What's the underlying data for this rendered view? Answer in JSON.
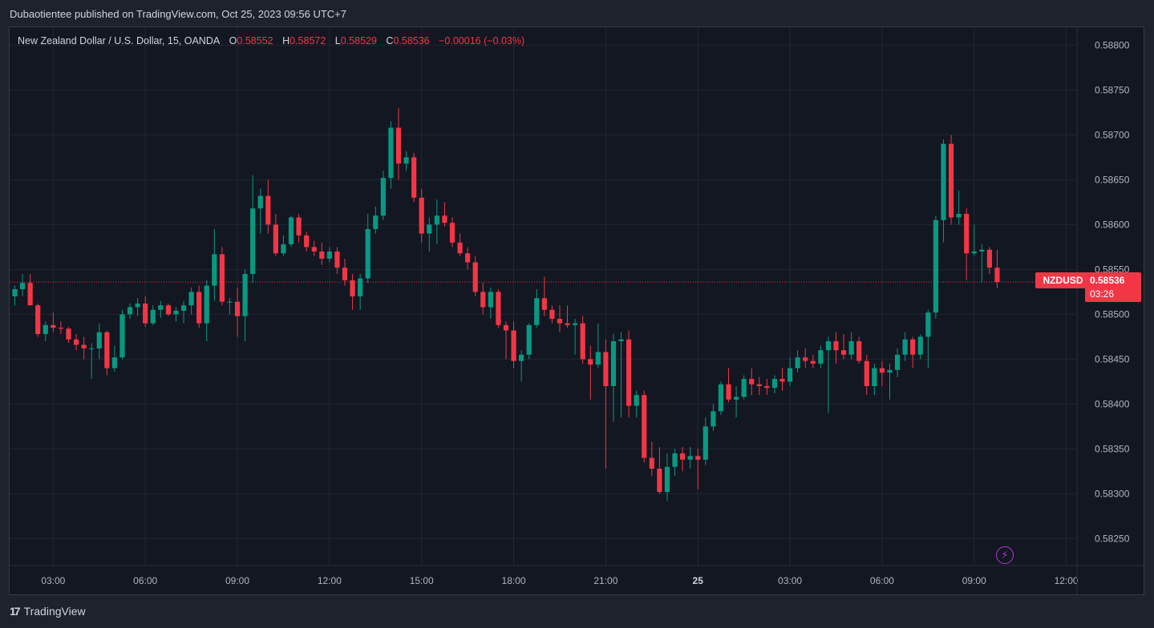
{
  "publisher_line": "Dubaotientee published on TradingView.com, Oct 25, 2023 09:56 UTC+7",
  "legend": {
    "symbol": "New Zealand Dollar / U.S. Dollar, 15, OANDA",
    "o_label": "O",
    "o_value": "0.58552",
    "h_label": "H",
    "h_value": "0.58572",
    "l_label": "L",
    "l_value": "0.58529",
    "c_label": "C",
    "c_value": "0.58536",
    "change": "−0.00016 (−0.03%)"
  },
  "price_tag": {
    "symbol": "NZDUSD",
    "price": "0.58536",
    "countdown": "03:26"
  },
  "footer": {
    "logo": "17",
    "brand": "TradingView"
  },
  "colors": {
    "up": "#089981",
    "down": "#f23645",
    "background": "#131722",
    "grid": "#232733",
    "text": "#b2b5be"
  },
  "icons": {
    "lightning": "lightning-icon"
  },
  "chart_data": {
    "type": "candlestick",
    "title": "New Zealand Dollar / U.S. Dollar, 15, OANDA",
    "timeframe": "15",
    "y_ticks": [
      "0.58800",
      "0.58750",
      "0.58700",
      "0.58650",
      "0.58600",
      "0.58550",
      "0.58500",
      "0.58450",
      "0.58400",
      "0.58350",
      "0.58300",
      "0.58250"
    ],
    "ylim": [
      0.5822,
      0.5882
    ],
    "x_ticks": [
      {
        "label": "03:00",
        "i": 5,
        "bold": false
      },
      {
        "label": "06:00",
        "i": 17,
        "bold": false
      },
      {
        "label": "09:00",
        "i": 29,
        "bold": false
      },
      {
        "label": "12:00",
        "i": 41,
        "bold": false
      },
      {
        "label": "15:00",
        "i": 53,
        "bold": false
      },
      {
        "label": "18:00",
        "i": 65,
        "bold": false
      },
      {
        "label": "21:00",
        "i": 77,
        "bold": false
      },
      {
        "label": "25",
        "i": 89,
        "bold": true
      },
      {
        "label": "03:00",
        "i": 101,
        "bold": false
      },
      {
        "label": "06:00",
        "i": 113,
        "bold": false
      },
      {
        "label": "09:00",
        "i": 125,
        "bold": false
      },
      {
        "label": "12:00",
        "i": 137,
        "bold": false
      }
    ],
    "last_price": 0.58536,
    "candles": [
      [
        0.5852,
        0.58532,
        0.5851,
        0.58528
      ],
      [
        0.58528,
        0.58545,
        0.5852,
        0.58535
      ],
      [
        0.58535,
        0.58545,
        0.5851,
        0.5851
      ],
      [
        0.5851,
        0.58512,
        0.58475,
        0.58478
      ],
      [
        0.58478,
        0.58492,
        0.5847,
        0.58488
      ],
      [
        0.58488,
        0.58502,
        0.5848,
        0.58485
      ],
      [
        0.58485,
        0.58492,
        0.58478,
        0.58484
      ],
      [
        0.58484,
        0.58486,
        0.58468,
        0.58472
      ],
      [
        0.58472,
        0.58478,
        0.5846,
        0.58466
      ],
      [
        0.58466,
        0.58475,
        0.5845,
        0.58462
      ],
      [
        0.58462,
        0.58468,
        0.58428,
        0.58462
      ],
      [
        0.58462,
        0.5849,
        0.5845,
        0.5848
      ],
      [
        0.5848,
        0.58482,
        0.58432,
        0.5844
      ],
      [
        0.5844,
        0.58465,
        0.58436,
        0.58452
      ],
      [
        0.58452,
        0.58505,
        0.5845,
        0.585
      ],
      [
        0.585,
        0.58512,
        0.58495,
        0.58508
      ],
      [
        0.58508,
        0.58518,
        0.58498,
        0.58512
      ],
      [
        0.58512,
        0.5852,
        0.58486,
        0.5849
      ],
      [
        0.5849,
        0.5851,
        0.58488,
        0.58505
      ],
      [
        0.58505,
        0.58515,
        0.58496,
        0.5851
      ],
      [
        0.5851,
        0.58512,
        0.58498,
        0.585
      ],
      [
        0.585,
        0.58508,
        0.58492,
        0.58504
      ],
      [
        0.58504,
        0.58515,
        0.5849,
        0.5851
      ],
      [
        0.5851,
        0.5853,
        0.585,
        0.58525
      ],
      [
        0.58525,
        0.58532,
        0.58485,
        0.5849
      ],
      [
        0.5849,
        0.58538,
        0.5847,
        0.58532
      ],
      [
        0.58532,
        0.58595,
        0.58515,
        0.58567
      ],
      [
        0.58567,
        0.58575,
        0.5851,
        0.58514
      ],
      [
        0.58514,
        0.58518,
        0.585,
        0.58514
      ],
      [
        0.58514,
        0.5853,
        0.58475,
        0.58498
      ],
      [
        0.58498,
        0.5855,
        0.5847,
        0.58545
      ],
      [
        0.58545,
        0.58655,
        0.58535,
        0.58618
      ],
      [
        0.58618,
        0.5864,
        0.5859,
        0.58632
      ],
      [
        0.58632,
        0.5865,
        0.5859,
        0.586
      ],
      [
        0.586,
        0.58612,
        0.58565,
        0.58568
      ],
      [
        0.58568,
        0.58588,
        0.58565,
        0.58578
      ],
      [
        0.58578,
        0.5861,
        0.58575,
        0.58608
      ],
      [
        0.58608,
        0.58612,
        0.5858,
        0.58588
      ],
      [
        0.58588,
        0.58592,
        0.5857,
        0.58575
      ],
      [
        0.58575,
        0.58582,
        0.58565,
        0.5857
      ],
      [
        0.5857,
        0.5858,
        0.58555,
        0.58562
      ],
      [
        0.58562,
        0.58575,
        0.58558,
        0.5857
      ],
      [
        0.5857,
        0.58575,
        0.58545,
        0.58552
      ],
      [
        0.58552,
        0.58562,
        0.58532,
        0.58538
      ],
      [
        0.58538,
        0.58545,
        0.58505,
        0.5852
      ],
      [
        0.5852,
        0.58545,
        0.58505,
        0.5854
      ],
      [
        0.5854,
        0.58612,
        0.58535,
        0.58595
      ],
      [
        0.58595,
        0.5862,
        0.5859,
        0.5861
      ],
      [
        0.5861,
        0.5866,
        0.58605,
        0.58652
      ],
      [
        0.58652,
        0.58715,
        0.5864,
        0.58708
      ],
      [
        0.58708,
        0.5873,
        0.5865,
        0.58668
      ],
      [
        0.58668,
        0.58682,
        0.5866,
        0.58675
      ],
      [
        0.58675,
        0.5868,
        0.58625,
        0.5863
      ],
      [
        0.5863,
        0.5864,
        0.5858,
        0.5859
      ],
      [
        0.5859,
        0.58608,
        0.5857,
        0.586
      ],
      [
        0.586,
        0.58628,
        0.58578,
        0.5861
      ],
      [
        0.5861,
        0.58625,
        0.58598,
        0.58602
      ],
      [
        0.58602,
        0.58608,
        0.58575,
        0.5858
      ],
      [
        0.5858,
        0.5859,
        0.58565,
        0.58568
      ],
      [
        0.58568,
        0.58575,
        0.5855,
        0.58558
      ],
      [
        0.58558,
        0.58565,
        0.5852,
        0.58525
      ],
      [
        0.58525,
        0.58535,
        0.585,
        0.58508
      ],
      [
        0.58508,
        0.5853,
        0.58495,
        0.58525
      ],
      [
        0.58525,
        0.58528,
        0.58485,
        0.58488
      ],
      [
        0.58488,
        0.58492,
        0.5845,
        0.58482
      ],
      [
        0.58482,
        0.58492,
        0.5844,
        0.58448
      ],
      [
        0.58448,
        0.5846,
        0.58425,
        0.58455
      ],
      [
        0.58455,
        0.5849,
        0.5845,
        0.58488
      ],
      [
        0.58488,
        0.58528,
        0.58485,
        0.58518
      ],
      [
        0.58518,
        0.58542,
        0.58498,
        0.58505
      ],
      [
        0.58505,
        0.5851,
        0.5849,
        0.58495
      ],
      [
        0.58495,
        0.5851,
        0.5848,
        0.5849
      ],
      [
        0.5849,
        0.5851,
        0.58485,
        0.58488
      ],
      [
        0.58488,
        0.58495,
        0.58455,
        0.5849
      ],
      [
        0.5849,
        0.58498,
        0.58445,
        0.5845
      ],
      [
        0.5845,
        0.58465,
        0.58405,
        0.58444
      ],
      [
        0.58444,
        0.5849,
        0.5844,
        0.58458
      ],
      [
        0.58458,
        0.58472,
        0.58328,
        0.5842
      ],
      [
        0.5842,
        0.58478,
        0.5838,
        0.5847
      ],
      [
        0.5847,
        0.5848,
        0.58385,
        0.58472
      ],
      [
        0.58472,
        0.58482,
        0.58385,
        0.58398
      ],
      [
        0.58398,
        0.58415,
        0.58385,
        0.5841
      ],
      [
        0.5841,
        0.58415,
        0.58335,
        0.5834
      ],
      [
        0.5834,
        0.58358,
        0.5832,
        0.58328
      ],
      [
        0.58328,
        0.58352,
        0.583,
        0.58302
      ],
      [
        0.58302,
        0.58345,
        0.58292,
        0.5833
      ],
      [
        0.5833,
        0.5835,
        0.5832,
        0.58345
      ],
      [
        0.58345,
        0.58352,
        0.58325,
        0.58338
      ],
      [
        0.58338,
        0.58352,
        0.58328,
        0.58342
      ],
      [
        0.58342,
        0.5835,
        0.58305,
        0.58338
      ],
      [
        0.58338,
        0.58385,
        0.58332,
        0.58375
      ],
      [
        0.58375,
        0.584,
        0.5837,
        0.58392
      ],
      [
        0.58392,
        0.58425,
        0.58388,
        0.58422
      ],
      [
        0.58422,
        0.5844,
        0.58402,
        0.58405
      ],
      [
        0.58405,
        0.5842,
        0.58385,
        0.58408
      ],
      [
        0.58408,
        0.58432,
        0.58405,
        0.58428
      ],
      [
        0.58428,
        0.5844,
        0.5841,
        0.58422
      ],
      [
        0.58422,
        0.5843,
        0.5841,
        0.5842
      ],
      [
        0.5842,
        0.58428,
        0.5841,
        0.58418
      ],
      [
        0.58418,
        0.58432,
        0.58412,
        0.58428
      ],
      [
        0.58428,
        0.5844,
        0.58415,
        0.58425
      ],
      [
        0.58425,
        0.58452,
        0.5842,
        0.5844
      ],
      [
        0.5844,
        0.5846,
        0.58435,
        0.58452
      ],
      [
        0.58452,
        0.58462,
        0.5844,
        0.58448
      ],
      [
        0.58448,
        0.58455,
        0.5844,
        0.58445
      ],
      [
        0.58445,
        0.58465,
        0.5844,
        0.5846
      ],
      [
        0.5846,
        0.58475,
        0.5839,
        0.5847
      ],
      [
        0.5847,
        0.5848,
        0.58445,
        0.5846
      ],
      [
        0.5846,
        0.58478,
        0.5845,
        0.58455
      ],
      [
        0.58455,
        0.5848,
        0.5845,
        0.5847
      ],
      [
        0.5847,
        0.58475,
        0.58445,
        0.58448
      ],
      [
        0.58448,
        0.58455,
        0.5841,
        0.5842
      ],
      [
        0.5842,
        0.58445,
        0.5841,
        0.5844
      ],
      [
        0.5844,
        0.58448,
        0.5842,
        0.58435
      ],
      [
        0.58435,
        0.58445,
        0.58405,
        0.58438
      ],
      [
        0.58438,
        0.58462,
        0.5843,
        0.58455
      ],
      [
        0.58455,
        0.5848,
        0.58448,
        0.58472
      ],
      [
        0.58472,
        0.58475,
        0.5844,
        0.58455
      ],
      [
        0.58455,
        0.58478,
        0.5845,
        0.58475
      ],
      [
        0.58475,
        0.58505,
        0.5844,
        0.58502
      ],
      [
        0.58502,
        0.5861,
        0.58495,
        0.58605
      ],
      [
        0.58605,
        0.58695,
        0.5858,
        0.5869
      ],
      [
        0.5869,
        0.587,
        0.586,
        0.58608
      ],
      [
        0.58608,
        0.58638,
        0.586,
        0.58612
      ],
      [
        0.58612,
        0.58618,
        0.58538,
        0.58568
      ],
      [
        0.58568,
        0.586,
        0.58565,
        0.5857
      ],
      [
        0.5857,
        0.58578,
        0.58535,
        0.58572
      ],
      [
        0.58572,
        0.58575,
        0.58545,
        0.58552
      ],
      [
        0.58552,
        0.58572,
        0.58529,
        0.58536
      ]
    ]
  }
}
